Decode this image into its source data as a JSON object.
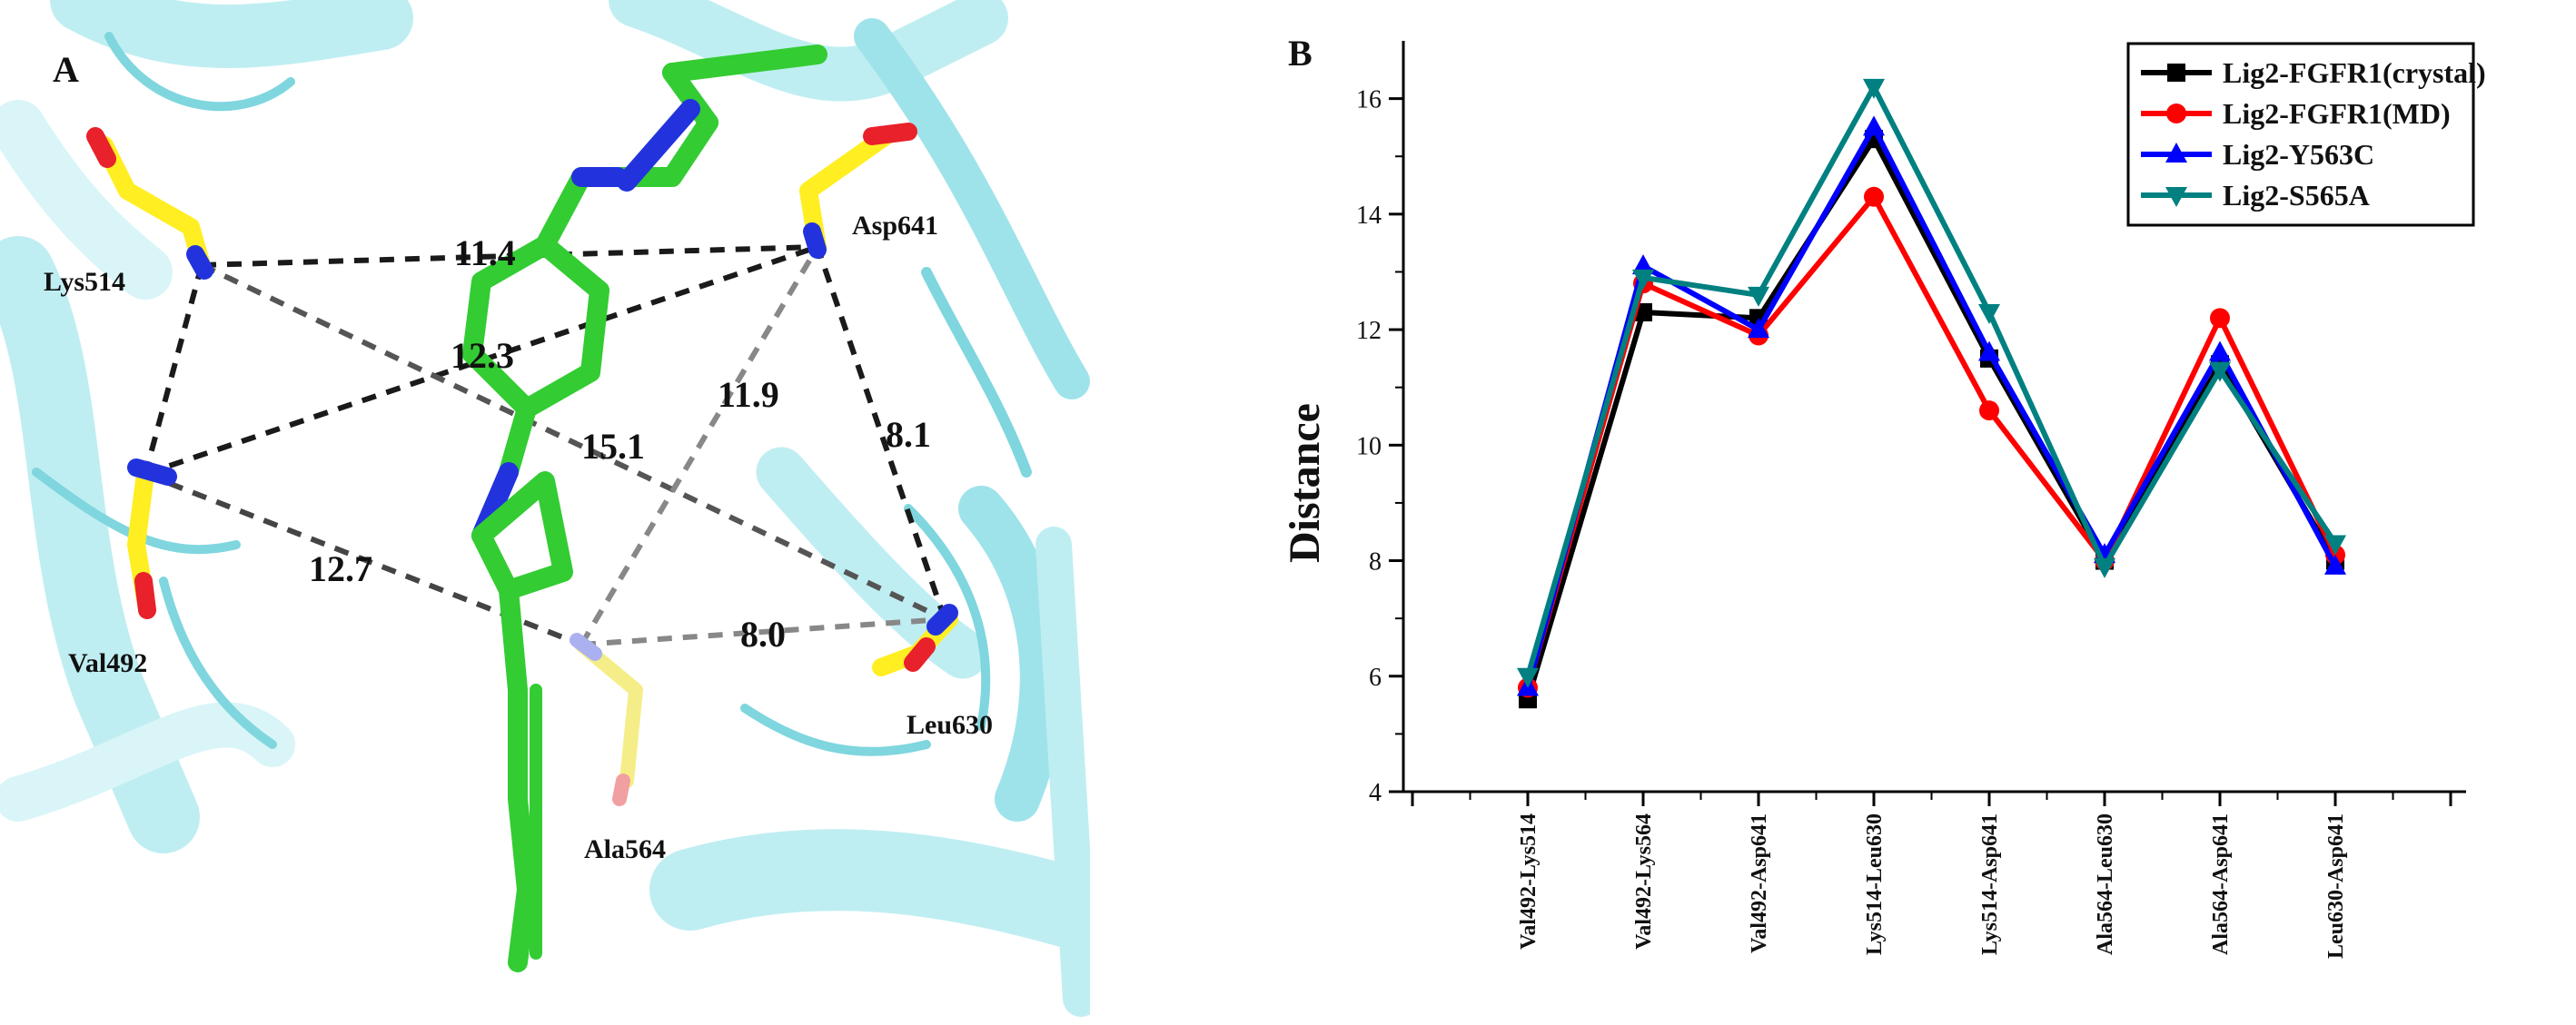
{
  "panel_a": {
    "label": "A",
    "residues": {
      "lys514": "Lys514",
      "asp641": "Asp641",
      "val492": "Val492",
      "leu630": "Leu630",
      "ala564": "Ala564"
    },
    "distances": {
      "d_lys514_asp641": "11.4",
      "d_val492_asp641": "12.3",
      "d_ala564_asp641": "11.9",
      "d_leu630_asp641": "8.1",
      "d_lys514_leu630": "15.1",
      "d_val492_ala564": "12.7",
      "d_ala564_leu630": "8.0"
    },
    "colors": {
      "ribbon": "#7fd6de",
      "ribbon_light": "#bfeef2",
      "ligand": "#33cc33",
      "nitrogen": "#2233dd",
      "oxygen": "#e8212b",
      "residue_carbon": "#ffee22",
      "dash": "#1a1a1a"
    }
  },
  "panel_b": {
    "label": "B",
    "colors": {
      "crystal": "#000000",
      "md": "#ff0000",
      "y563c": "#0000ff",
      "s565a": "#008080"
    },
    "chart_data": {
      "type": "line",
      "title": "",
      "xlabel": "",
      "ylabel": "Distance",
      "ylim": [
        4,
        17
      ],
      "yticks": [
        4,
        6,
        8,
        10,
        12,
        14,
        16
      ],
      "ytick_labels": [
        "4",
        "6",
        "8",
        "10",
        "12",
        "14",
        "16"
      ],
      "legend_position": "top-right",
      "categories": [
        "Val492-Lys514",
        "Val492-Lys564",
        "Val492-Asp641",
        "Lys514-Leu630",
        "Lys514-Asp641",
        "Ala564-Leu630",
        "Ala564-Asp641",
        "Leu630-Asp641"
      ],
      "series": [
        {
          "name": "Lig2-FGFR1(crystal)",
          "color": "#000000",
          "marker": "square",
          "values": [
            5.6,
            12.3,
            12.2,
            15.3,
            11.5,
            8.0,
            11.4,
            8.0
          ]
        },
        {
          "name": "Lig2-FGFR1(MD)",
          "color": "#ff0000",
          "marker": "circle",
          "values": [
            5.8,
            12.8,
            11.9,
            14.3,
            10.6,
            8.0,
            12.2,
            8.1
          ]
        },
        {
          "name": "Lig2-Y563C",
          "color": "#0000ff",
          "marker": "triangle-up",
          "values": [
            5.8,
            13.1,
            12.0,
            15.5,
            11.6,
            8.1,
            11.6,
            7.9
          ]
        },
        {
          "name": "Lig2-S565A",
          "color": "#008080",
          "marker": "triangle-down",
          "values": [
            6.0,
            12.9,
            12.6,
            16.2,
            12.3,
            7.9,
            11.3,
            8.3
          ]
        }
      ]
    }
  }
}
